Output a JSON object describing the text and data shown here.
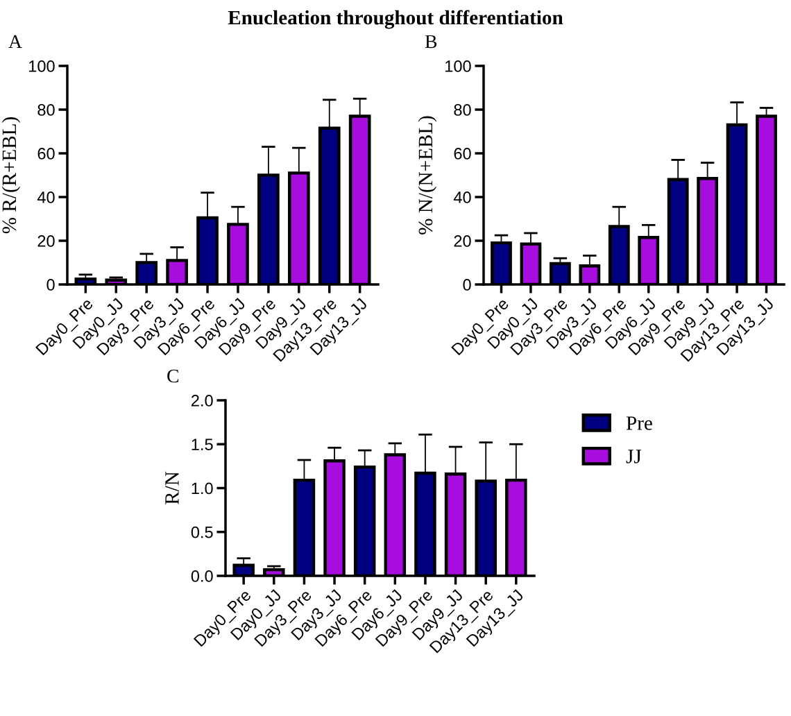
{
  "chart_data": [
    {
      "type": "bar",
      "title": "Enucleation throughout differentiation",
      "subtitle": "A",
      "ylabel": "% R/(R+EBL)",
      "categories": [
        "Day0_Pre",
        "Day0_JJ",
        "Day3_Pre",
        "Day3_JJ",
        "Day6_Pre",
        "Day6_JJ",
        "Day9_Pre",
        "Day9_JJ",
        "Day13_Pre",
        "Day13_JJ"
      ],
      "ylim": [
        0,
        100
      ],
      "yticks": [
        0,
        20,
        40,
        60,
        80,
        100
      ],
      "grid": false,
      "legend": false,
      "series": [
        {
          "color": "#000080",
          "values": [
            2.5,
            null,
            10,
            null,
            30.5,
            null,
            50,
            null,
            71.5,
            null
          ],
          "errors": [
            [
              2.5,
              4.5
            ],
            null,
            [
              10,
              14
            ],
            null,
            [
              30.5,
              42
            ],
            null,
            [
              50,
              63
            ],
            null,
            [
              71.5,
              84.5
            ],
            null
          ]
        },
        {
          "color": "#a80ddf",
          "values": [
            null,
            2,
            null,
            11,
            null,
            27.5,
            null,
            51,
            null,
            77
          ],
          "errors": [
            null,
            [
              2,
              3.2
            ],
            null,
            [
              11,
              17
            ],
            null,
            [
              27.5,
              35.5
            ],
            null,
            [
              51,
              62.5
            ],
            null,
            [
              77,
              85
            ]
          ]
        }
      ]
    },
    {
      "type": "bar",
      "subtitle": "B",
      "ylabel": "% N/(N+EBL)",
      "categories": [
        "Day0_Pre",
        "Day0_JJ",
        "Day3_Pre",
        "Day3_JJ",
        "Day6_Pre",
        "Day6_JJ",
        "Day9_Pre",
        "Day9_JJ",
        "Day13_Pre",
        "Day13_JJ"
      ],
      "ylim": [
        0,
        100
      ],
      "yticks": [
        0,
        20,
        40,
        60,
        80,
        100
      ],
      "grid": false,
      "legend": false,
      "series": [
        {
          "color": "#000080",
          "values": [
            19,
            null,
            9.5,
            null,
            26.5,
            null,
            48,
            null,
            73,
            null
          ],
          "errors": [
            [
              19,
              22.5
            ],
            null,
            [
              9.5,
              12
            ],
            null,
            [
              26.5,
              35.5
            ],
            null,
            [
              48,
              57
            ],
            null,
            [
              73,
              83.3
            ],
            null
          ]
        },
        {
          "color": "#a80ddf",
          "values": [
            null,
            18.5,
            null,
            8.5,
            null,
            21.5,
            null,
            48.5,
            null,
            77
          ],
          "errors": [
            null,
            [
              18.5,
              23.5
            ],
            null,
            [
              8.5,
              13.2
            ],
            null,
            [
              21.5,
              27.2
            ],
            null,
            [
              48.5,
              55.7
            ],
            null,
            [
              77,
              80.8
            ]
          ]
        }
      ]
    },
    {
      "type": "bar",
      "subtitle": "C",
      "ylabel": "R/N",
      "categories": [
        "Day0_Pre",
        "Day0_JJ",
        "Day3_Pre",
        "Day3_JJ",
        "Day6_Pre",
        "Day6_JJ",
        "Day9_Pre",
        "Day9_JJ",
        "Day13_Pre",
        "Day13_JJ"
      ],
      "ylim": [
        0,
        2.0
      ],
      "yticks": [
        {
          "value": 0,
          "label": "0.0"
        },
        0.5,
        {
          "value": 1,
          "label": "1.0"
        },
        1.5,
        {
          "value": 2,
          "label": "2.0"
        }
      ],
      "grid": false,
      "legend": "top right",
      "series": [
        {
          "name": "Pre",
          "color": "#000080",
          "values": [
            0.12,
            null,
            1.09,
            null,
            1.24,
            null,
            1.17,
            null,
            1.08,
            null
          ],
          "errors": [
            [
              0.12,
              0.2
            ],
            null,
            [
              1.09,
              1.32
            ],
            null,
            [
              1.24,
              1.43
            ],
            null,
            [
              1.17,
              1.61
            ],
            null,
            [
              1.08,
              1.52
            ],
            null
          ]
        },
        {
          "name": "JJ",
          "color": "#a80ddf",
          "values": [
            null,
            0.07,
            null,
            1.31,
            null,
            1.38,
            null,
            1.16,
            null,
            1.09
          ],
          "errors": [
            null,
            [
              0.07,
              0.11
            ],
            null,
            [
              1.31,
              1.46
            ],
            null,
            [
              1.38,
              1.51
            ],
            null,
            [
              1.16,
              1.47
            ],
            null,
            [
              1.09,
              1.5
            ]
          ]
        }
      ]
    }
  ]
}
